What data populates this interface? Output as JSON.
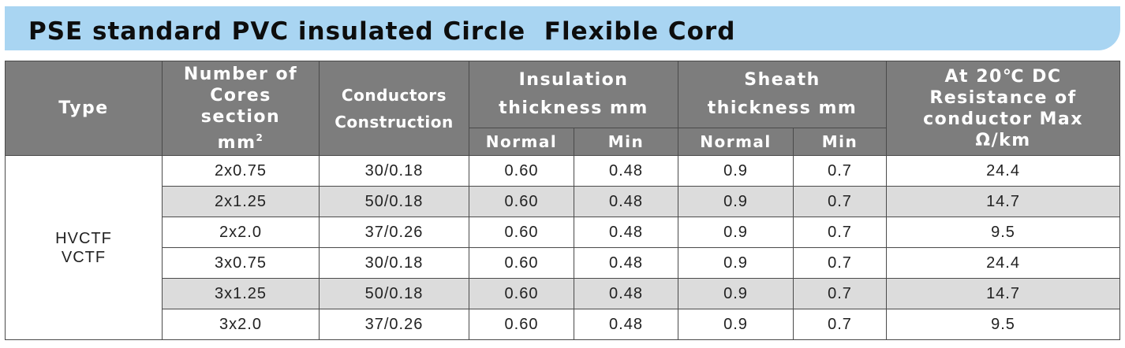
{
  "title": "PSE standard PVC insulated Circle  Flexible Cord",
  "header": {
    "type": "Type",
    "cores_lines": [
      "Number of",
      "Cores",
      "section",
      "mm"
    ],
    "cores_sup": "2",
    "conductors_lines": [
      "Conductors",
      "Construction"
    ],
    "insulation_lines": [
      "Insulation",
      "thickness mm"
    ],
    "sheath_lines": [
      "Sheath",
      "thickness mm"
    ],
    "resistance_lines": [
      "At 20℃ DC",
      "Resistance of",
      "conductor Max",
      "Ω/km"
    ],
    "normal": "Normal",
    "min": "Min"
  },
  "type_lines": [
    "HVCTF",
    "VCTF"
  ],
  "rows": [
    {
      "cores": "2x0.75",
      "construction": "30/0.18",
      "ins_normal": "0.60",
      "ins_min": "0.48",
      "sh_normal": "0.9",
      "sh_min": "0.7",
      "resistance": "24.4"
    },
    {
      "cores": "2x1.25",
      "construction": "50/0.18",
      "ins_normal": "0.60",
      "ins_min": "0.48",
      "sh_normal": "0.9",
      "sh_min": "0.7",
      "resistance": "14.7"
    },
    {
      "cores": "2x2.0",
      "construction": "37/0.26",
      "ins_normal": "0.60",
      "ins_min": "0.48",
      "sh_normal": "0.9",
      "sh_min": "0.7",
      "resistance": "9.5"
    },
    {
      "cores": "3x0.75",
      "construction": "30/0.18",
      "ins_normal": "0.60",
      "ins_min": "0.48",
      "sh_normal": "0.9",
      "sh_min": "0.7",
      "resistance": "24.4"
    },
    {
      "cores": "3x1.25",
      "construction": "50/0.18",
      "ins_normal": "0.60",
      "ins_min": "0.48",
      "sh_normal": "0.9",
      "sh_min": "0.7",
      "resistance": "14.7"
    },
    {
      "cores": "3x2.0",
      "construction": "37/0.26",
      "ins_normal": "0.60",
      "ins_min": "0.48",
      "sh_normal": "0.9",
      "sh_min": "0.7",
      "resistance": "9.5"
    }
  ],
  "colors": {
    "title_bar": "#a9d5f2",
    "header_bg": "#7d7d7d",
    "alt_row": "#dcdcdc"
  }
}
